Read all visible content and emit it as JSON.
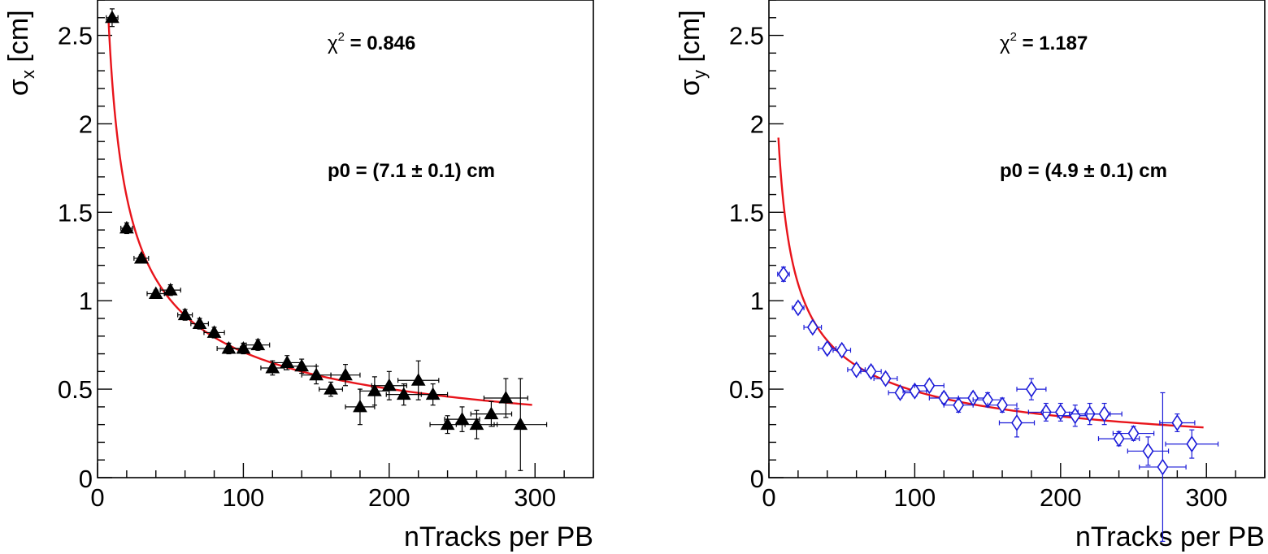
{
  "chart_data": [
    {
      "type": "scatter",
      "panel": "left",
      "xlabel": "nTracks per PB",
      "ylabel_symbol": "σ",
      "ylabel_sub": "x",
      "ylabel_unit": " [cm]",
      "xlim": [
        0,
        340
      ],
      "ylim": [
        0,
        2.7
      ],
      "xticks": [
        0,
        100,
        200,
        300
      ],
      "xtick_labels": [
        "0",
        "100",
        "200",
        "300"
      ],
      "yticks": [
        0,
        0.5,
        1,
        1.5,
        2,
        2.5
      ],
      "ytick_labels": [
        "0",
        "0.5",
        "1",
        "1.5",
        "2",
        "2.5"
      ],
      "marker": "filled-triangle",
      "marker_color": "#000000",
      "fit_color": "#e8141b",
      "fit": {
        "formula": "p0/sqrt(x)",
        "p0": 7.1,
        "x_range": [
          7.5,
          298
        ]
      },
      "annotations": {
        "chi2_label": "χ",
        "chi2_sup": "2",
        "chi2_value": " = 0.846",
        "p0_text": "p0 = (7.1 ± 0.1) cm"
      },
      "series": [
        {
          "name": "data",
          "x": [
            10,
            20,
            30,
            40,
            50,
            60,
            70,
            80,
            90,
            100,
            110,
            120,
            130,
            140,
            150,
            160,
            170,
            180,
            190,
            200,
            210,
            220,
            230,
            240,
            250,
            260,
            270,
            280,
            290
          ],
          "y": [
            2.6,
            1.41,
            1.24,
            1.04,
            1.06,
            0.92,
            0.87,
            0.82,
            0.73,
            0.73,
            0.75,
            0.62,
            0.65,
            0.63,
            0.58,
            0.5,
            0.58,
            0.4,
            0.49,
            0.52,
            0.47,
            0.55,
            0.47,
            0.3,
            0.33,
            0.3,
            0.36,
            0.45,
            0.3
          ],
          "xerr": [
            4,
            4,
            5,
            6,
            7,
            5,
            6,
            7,
            8,
            10,
            8,
            8,
            10,
            10,
            10,
            8,
            10,
            10,
            10,
            12,
            12,
            14,
            10,
            12,
            12,
            14,
            14,
            15,
            18
          ],
          "yerr": [
            0.05,
            0.03,
            0.02,
            0.02,
            0.03,
            0.03,
            0.03,
            0.03,
            0.03,
            0.03,
            0.03,
            0.04,
            0.04,
            0.04,
            0.05,
            0.04,
            0.06,
            0.1,
            0.08,
            0.08,
            0.06,
            0.11,
            0.06,
            0.05,
            0.07,
            0.08,
            0.07,
            0.11,
            0.26
          ]
        }
      ]
    },
    {
      "type": "scatter",
      "panel": "right",
      "xlabel": "nTracks per PB",
      "ylabel_symbol": "σ",
      "ylabel_sub": "y",
      "ylabel_unit": " [cm]",
      "xlim": [
        0,
        340
      ],
      "ylim": [
        0,
        2.7
      ],
      "xticks": [
        0,
        100,
        200,
        300
      ],
      "xtick_labels": [
        "0",
        "100",
        "200",
        "300"
      ],
      "yticks": [
        0,
        0.5,
        1,
        1.5,
        2,
        2.5
      ],
      "ytick_labels": [
        "0",
        "0.5",
        "1",
        "1.5",
        "2",
        "2.5"
      ],
      "marker": "open-diamond",
      "marker_color": "#1b1bd8",
      "fit_color": "#e8141b",
      "fit": {
        "formula": "p0/sqrt(x)",
        "p0": 4.9,
        "x_range": [
          6.5,
          298
        ]
      },
      "annotations": {
        "chi2_label": "χ",
        "chi2_sup": "2",
        "chi2_value": " = 1.187",
        "p0_text": "p0 = (4.9 ± 0.1) cm"
      },
      "series": [
        {
          "name": "data",
          "x": [
            10,
            20,
            30,
            40,
            50,
            60,
            70,
            80,
            90,
            100,
            110,
            120,
            130,
            140,
            150,
            160,
            170,
            180,
            190,
            200,
            210,
            220,
            230,
            240,
            250,
            260,
            270,
            280,
            290
          ],
          "y": [
            1.15,
            0.96,
            0.85,
            0.73,
            0.72,
            0.61,
            0.6,
            0.56,
            0.48,
            0.49,
            0.52,
            0.45,
            0.41,
            0.45,
            0.44,
            0.41,
            0.31,
            0.5,
            0.37,
            0.37,
            0.35,
            0.36,
            0.36,
            0.22,
            0.25,
            0.15,
            0.06,
            0.31,
            0.19
          ],
          "xerr": [
            4,
            4,
            6,
            6,
            6,
            6,
            7,
            8,
            8,
            8,
            10,
            10,
            10,
            10,
            10,
            10,
            12,
            10,
            12,
            12,
            12,
            14,
            12,
            14,
            14,
            14,
            16,
            12,
            18
          ],
          "yerr": [
            0.04,
            0.03,
            0.03,
            0.03,
            0.03,
            0.03,
            0.03,
            0.03,
            0.03,
            0.03,
            0.03,
            0.03,
            0.04,
            0.03,
            0.04,
            0.04,
            0.08,
            0.06,
            0.05,
            0.05,
            0.06,
            0.06,
            0.06,
            0.04,
            0.04,
            0.08,
            0.42,
            0.05,
            0.08
          ]
        }
      ]
    }
  ]
}
